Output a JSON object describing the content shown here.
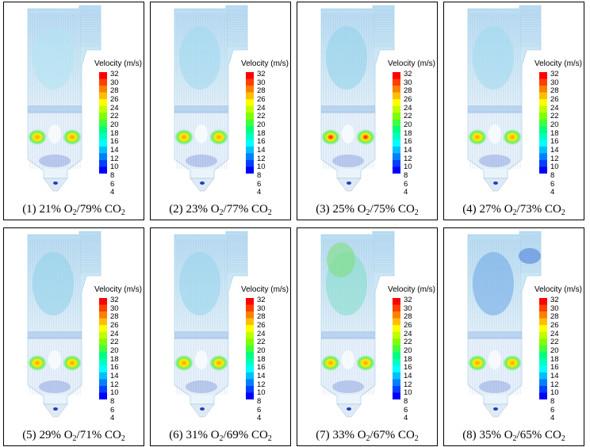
{
  "legend": {
    "title": "Velocity (m/s)",
    "ticks": [
      "32",
      "30",
      "28",
      "26",
      "24",
      "22",
      "20",
      "18",
      "16",
      "14",
      "12",
      "10",
      "8",
      "6",
      "4"
    ],
    "colors": [
      "#ff0000",
      "#ff4000",
      "#ff8000",
      "#ffbf00",
      "#ffff00",
      "#bfff00",
      "#80ff00",
      "#40ff40",
      "#00ff80",
      "#00ffbf",
      "#00ffff",
      "#00bfff",
      "#0080ff",
      "#0040ff",
      "#0000ff"
    ]
  },
  "panels": [
    {
      "index": "(1)",
      "o2_pct": "21%",
      "co2_pct": "79%",
      "o2": "O",
      "co2": "CO",
      "sub": "2"
    },
    {
      "index": "(2)",
      "o2_pct": "23%",
      "co2_pct": "77%",
      "o2": "O",
      "co2": "CO",
      "sub": "2"
    },
    {
      "index": "(3)",
      "o2_pct": "25%",
      "co2_pct": "75%",
      "o2": "O",
      "co2": "CO",
      "sub": "2"
    },
    {
      "index": "(4)",
      "o2_pct": "27%",
      "co2_pct": "73%",
      "o2": "O",
      "co2": "CO",
      "sub": "2"
    },
    {
      "index": "(5)",
      "o2_pct": "29%",
      "co2_pct": "71%",
      "o2": "O",
      "co2": "CO",
      "sub": "2"
    },
    {
      "index": "(6)",
      "o2_pct": "31%",
      "co2_pct": "69%",
      "o2": "O",
      "co2": "CO",
      "sub": "2"
    },
    {
      "index": "(7)",
      "o2_pct": "33%",
      "co2_pct": "67%",
      "o2": "O",
      "co2": "CO",
      "sub": "2"
    },
    {
      "index": "(8)",
      "o2_pct": "35%",
      "co2_pct": "65%",
      "o2": "O",
      "co2": "CO",
      "sub": "2"
    }
  ]
}
